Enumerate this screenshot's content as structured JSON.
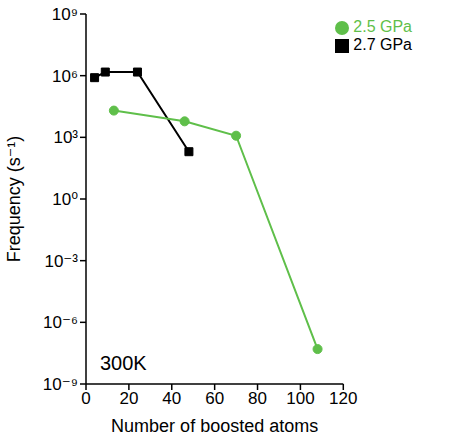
{
  "chart_data": {
    "type": "line",
    "x_label": "Number of boosted atoms",
    "y_label": "Frequency (s⁻¹)",
    "annotation": "300K",
    "log": "y",
    "legend": "top-right",
    "grid": false,
    "xlim": [
      0,
      120
    ],
    "xticks": [
      0,
      20,
      40,
      60,
      80,
      100,
      120
    ],
    "ylim": [
      1e-09,
      1000000000.0
    ],
    "yticks": [
      {
        "value": 1e-09,
        "label": "10⁻⁹"
      },
      {
        "value": 1e-06,
        "label": "10⁻⁶"
      },
      {
        "value": 0.001,
        "label": "10⁻³"
      },
      {
        "value": 1,
        "label": "10⁰"
      },
      {
        "value": 1000,
        "label": "10³"
      },
      {
        "value": 1000000,
        "label": "10⁶"
      },
      {
        "value": 1000000000,
        "label": "10⁹"
      }
    ],
    "series": [
      {
        "name": "2.7 GPa",
        "color": "#000000",
        "marker": "square",
        "x": [
          4,
          9,
          24,
          48
        ],
        "values": [
          800000,
          1500000,
          1500000,
          200
        ]
      },
      {
        "name": "2.5 GPa",
        "color": "#5fbf4a",
        "marker": "circle",
        "x": [
          13,
          46,
          70,
          108
        ],
        "values": [
          20000,
          6000,
          1200,
          5e-08
        ]
      }
    ]
  }
}
